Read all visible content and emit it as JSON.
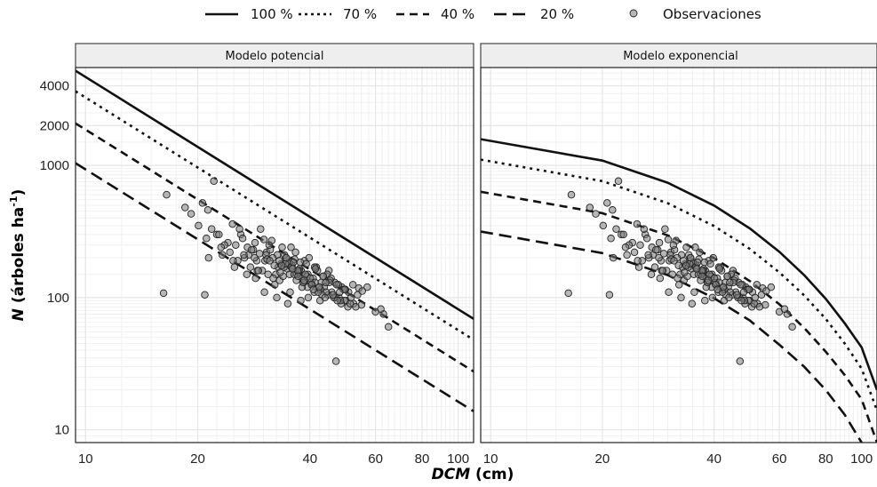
{
  "legend": {
    "items": [
      {
        "label": "100 %",
        "dash": "solid"
      },
      {
        "label": "70 %",
        "dash": "dotted"
      },
      {
        "label": "40 %",
        "dash": "dashed"
      },
      {
        "label": "20 %",
        "dash": "longdash"
      }
    ],
    "points_label": "Observaciones"
  },
  "axes": {
    "xlabel_italic": "DCM",
    "xlabel_rest": " (cm)",
    "ylabel_italic": "N",
    "ylabel_rest": " (árboles ha",
    "ylabel_sup": "-1",
    "ylabel_close": ")"
  },
  "chart_data": [
    {
      "type": "line",
      "title": "Modelo potencial",
      "x_scale": "log",
      "y_scale": "log",
      "xlim": [
        9.4,
        110
      ],
      "ylim": [
        8,
        5500
      ],
      "x_ticks": [
        10,
        20,
        40,
        60,
        80,
        100
      ],
      "x_tick_labels": [
        "10",
        "20",
        "40",
        "60",
        "80",
        "100"
      ],
      "y_ticks": [
        10,
        100,
        1000,
        2000,
        4000
      ],
      "y_tick_labels": [
        "10",
        "100",
        "1000",
        "2000",
        "4000"
      ],
      "grid": true,
      "series": [
        {
          "name": "100 %",
          "dash": "solid",
          "x": [
            9.4,
            110
          ],
          "y": [
            5200,
            69
          ]
        },
        {
          "name": "70 %",
          "dash": "dotted",
          "x": [
            9.4,
            110
          ],
          "y": [
            3640,
            48
          ]
        },
        {
          "name": "40 %",
          "dash": "dashed",
          "x": [
            9.4,
            110
          ],
          "y": [
            2080,
            27.6
          ]
        },
        {
          "name": "20 %",
          "dash": "longdash",
          "x": [
            9.4,
            110
          ],
          "y": [
            1040,
            13.8
          ]
        }
      ]
    },
    {
      "type": "line",
      "title": "Modelo exponencial",
      "x_scale": "log",
      "y_scale": "log",
      "xlim": [
        9.4,
        110
      ],
      "ylim": [
        8,
        5500
      ],
      "x_ticks": [
        10,
        20,
        40,
        60,
        80,
        100
      ],
      "x_tick_labels": [
        "10",
        "20",
        "40",
        "60",
        "80",
        "100"
      ],
      "y_ticks": [
        10,
        100,
        1000,
        2000,
        4000
      ],
      "y_tick_labels": [
        "10",
        "100",
        "1000",
        "2000",
        "4000"
      ],
      "grid": true,
      "series": [
        {
          "name": "100 %",
          "dash": "solid",
          "x": [
            9.4,
            20,
            30,
            40,
            50,
            60,
            70,
            80,
            90,
            100,
            110
          ],
          "y": [
            1580,
            1087,
            740,
            497,
            333,
            222,
            148,
            98,
            64,
            42,
            20
          ]
        },
        {
          "name": "70 %",
          "dash": "dotted",
          "x": [
            9.4,
            20,
            30,
            40,
            50,
            60,
            70,
            80,
            90,
            100,
            110
          ],
          "y": [
            1106,
            761,
            518,
            348,
            233,
            155,
            104,
            69,
            45,
            29,
            14
          ]
        },
        {
          "name": "40 %",
          "dash": "dashed",
          "x": [
            9.4,
            20,
            30,
            40,
            50,
            60,
            70,
            80,
            90,
            100,
            110
          ],
          "y": [
            632,
            435,
            296,
            199,
            133,
            89,
            59,
            39,
            26,
            17,
            8
          ]
        },
        {
          "name": "20 %",
          "dash": "longdash",
          "x": [
            9.4,
            20,
            30,
            40,
            50,
            60,
            70,
            80,
            90,
            100,
            110
          ],
          "y": [
            316,
            217,
            148,
            99,
            67,
            44,
            30,
            20,
            13,
            8,
            4
          ]
        }
      ]
    }
  ],
  "observations": {
    "x": [
      16.5,
      18.5,
      19.2,
      20.1,
      20.6,
      21.3,
      22.1,
      16.2,
      20.9,
      21.4,
      47,
      63,
      65,
      60,
      62,
      50,
      55,
      57,
      45,
      24.8,
      25.3,
      26.1,
      27.4,
      28.2,
      29.5,
      30.3,
      31.6,
      32.4,
      33.7,
      34.5,
      35.8,
      36.6,
      37.9,
      38.7,
      39.5,
      40.8,
      41.6,
      42.9,
      43.7,
      44.5,
      45.8,
      46.6,
      47.9,
      48.7,
      49.5,
      50.8,
      51.6,
      52.4,
      53.7,
      25.6,
      26.4,
      27.7,
      28.5,
      29.8,
      30.6,
      31.9,
      32.7,
      33.5,
      34.8,
      35.6,
      36.9,
      37.7,
      38.5,
      39.8,
      40.6,
      41.9,
      42.7,
      43.5,
      44.8,
      45.6,
      46.9,
      47.7,
      48.5,
      49.8,
      50.6,
      22.5,
      23.3,
      24.1,
      25.9,
      27.2,
      28.8,
      30.1,
      31.3,
      32.9,
      34.2,
      35.3,
      36.4,
      37.5,
      38.2,
      39.1,
      40.3,
      41.2,
      42.3,
      43.4,
      44.2,
      45.3,
      46.4,
      47.2,
      48.3,
      49.2,
      23.6,
      24.9,
      26.7,
      28.9,
      31.1,
      33.2,
      35.1,
      37.3,
      39.4,
      41.4,
      43.1,
      45.1,
      47.4,
      49.6,
      29.1,
      30.9,
      32.2,
      33.9,
      35.4,
      36.8,
      38.1,
      39.6,
      41.1,
      42.6,
      34.1,
      35.2,
      36.3,
      37.4,
      38.4,
      39.3,
      30.5,
      31.8,
      33.1,
      34.4,
      35.7,
      37.1,
      38.9,
      40.1,
      41.3,
      27.9,
      29.3,
      30.7,
      32.1,
      33.3,
      34.6,
      35.9,
      37.2,
      38.6,
      40.4,
      42.1,
      43.9,
      36.1,
      33.6,
      31.2,
      28.4,
      26.6,
      24.4,
      23.1,
      22.8,
      21.8,
      21.1,
      52.2,
      54.1,
      55.3,
      51.3,
      53.1,
      48.1,
      46.1,
      44.1,
      42.4,
      40.9,
      37.8,
      34.9,
      32.6,
      30.2,
      28.6,
      27.1,
      25.1
    ],
    "y": [
      600,
      480,
      430,
      350,
      520,
      460,
      760,
      108,
      105,
      200,
      33,
      75,
      60,
      78,
      82,
      95,
      88,
      120,
      160,
      360,
      250,
      300,
      210,
      230,
      330,
      190,
      270,
      150,
      240,
      200,
      175,
      220,
      160,
      190,
      150,
      140,
      170,
      130,
      120,
      150,
      110,
      130,
      100,
      120,
      95,
      110,
      100,
      90,
      105,
      190,
      280,
      170,
      260,
      160,
      220,
      140,
      210,
      180,
      165,
      240,
      150,
      185,
      130,
      200,
      125,
      160,
      115,
      145,
      105,
      140,
      100,
      125,
      90,
      115,
      85,
      300,
      210,
      260,
      330,
      240,
      190,
      275,
      230,
      170,
      210,
      150,
      195,
      165,
      140,
      180,
      130,
      170,
      120,
      145,
      110,
      135,
      100,
      125,
      95,
      115,
      250,
      190,
      200,
      160,
      250,
      135,
      185,
      155,
      120,
      165,
      105,
      130,
      95,
      115,
      160,
      150,
      125,
      145,
      110,
      135,
      120,
      100,
      110,
      95,
      170,
      180,
      150,
      160,
      130,
      145,
      210,
      200,
      190,
      180,
      170,
      160,
      150,
      140,
      130,
      230,
      215,
      195,
      175,
      155,
      200,
      165,
      145,
      135,
      125,
      110,
      100,
      185,
      175,
      190,
      200,
      210,
      220,
      240,
      300,
      330,
      280,
      125,
      118,
      112,
      90,
      85,
      110,
      105,
      130,
      120,
      115,
      95,
      90,
      100,
      110,
      140,
      150,
      170
    ],
    "shared": true
  }
}
